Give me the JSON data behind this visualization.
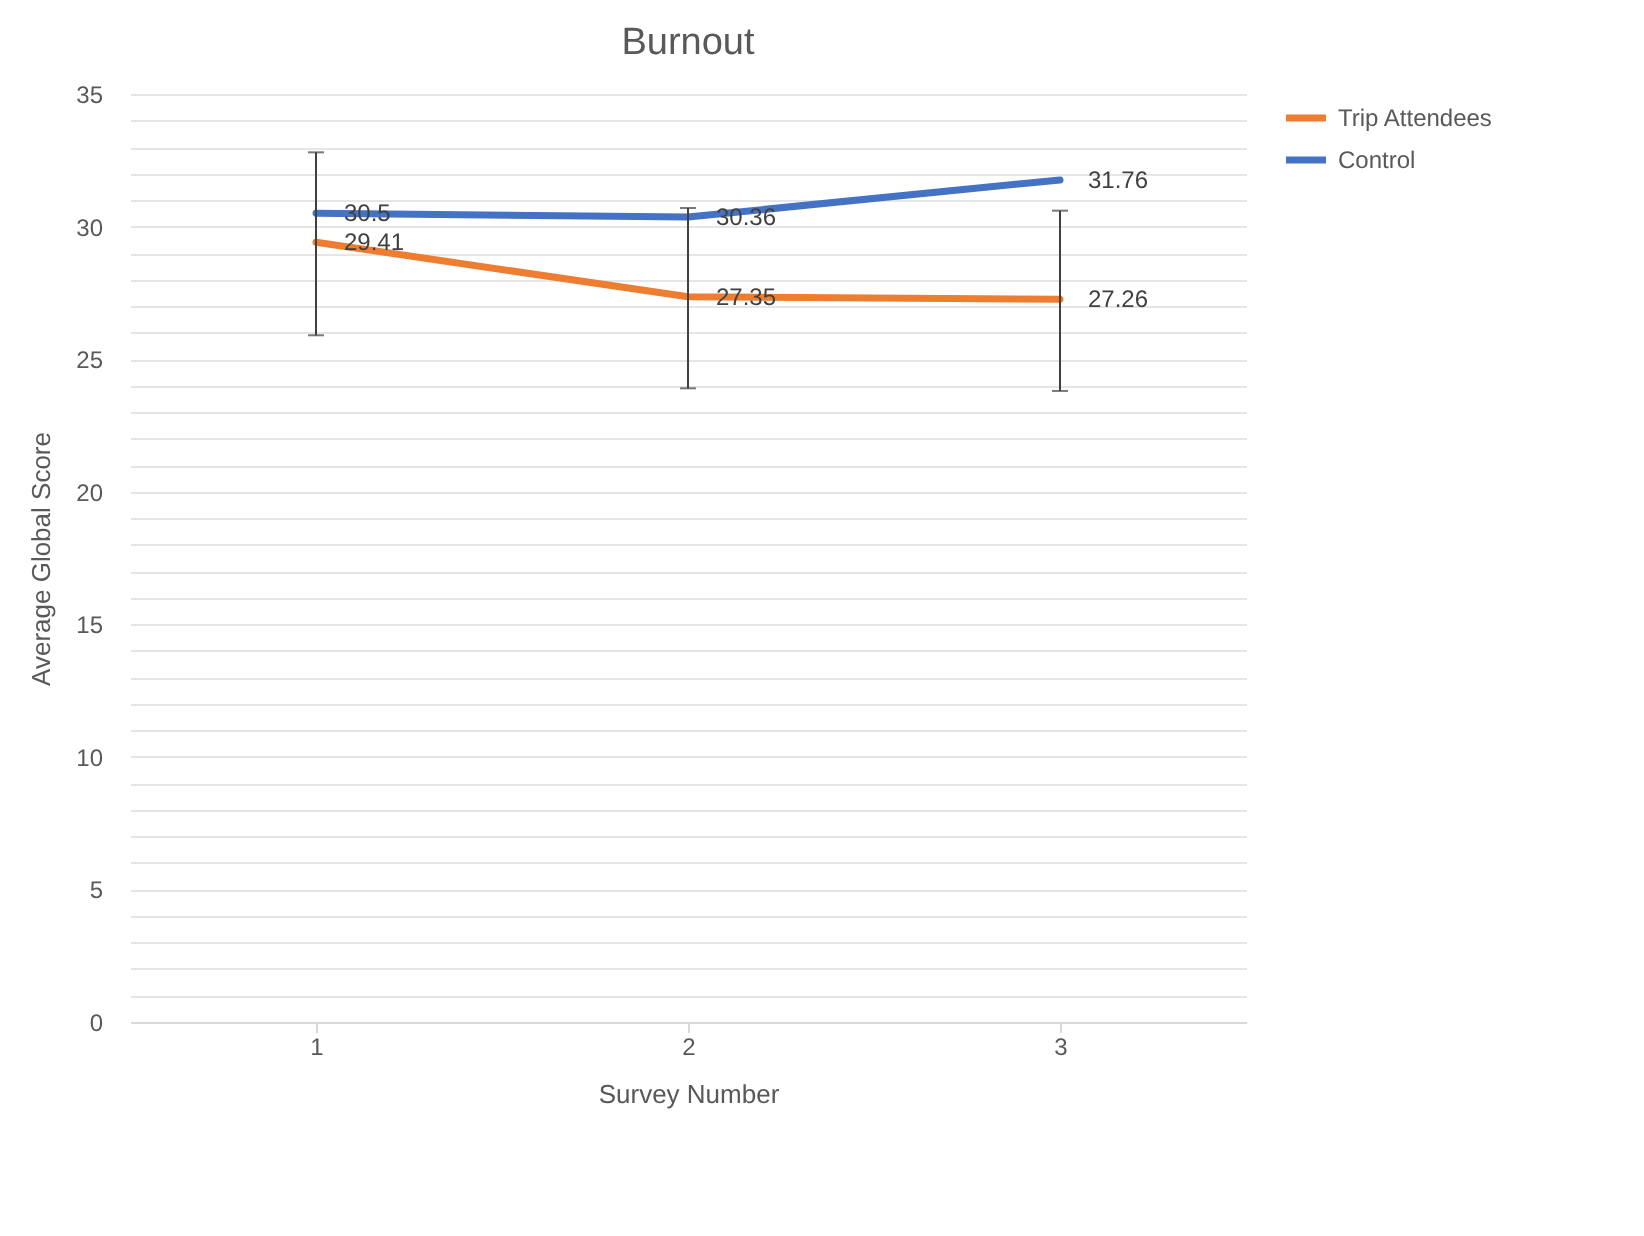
{
  "chart_data": {
    "type": "line",
    "title": "Burnout",
    "xlabel": "Survey Number",
    "ylabel": "Average Global Score",
    "categories": [
      "1",
      "2",
      "3"
    ],
    "series": [
      {
        "name": "Trip Attendees",
        "color": "#ed7d31",
        "values": [
          29.41,
          27.35,
          27.26
        ],
        "errors": [
          [
            25.9,
            32.8
          ],
          [
            23.9,
            30.7
          ],
          [
            23.8,
            30.6
          ]
        ]
      },
      {
        "name": "Control",
        "color": "#4472c4",
        "values": [
          30.5,
          30.36,
          31.76
        ]
      }
    ],
    "ylim": [
      0,
      35
    ],
    "yticks": [
      0,
      {
        "value": 1,
        "label": null
      },
      {
        "value": 2,
        "label": null
      },
      {
        "value": 3,
        "label": null
      },
      {
        "value": 4,
        "label": null
      },
      5,
      {
        "value": 6,
        "label": null
      },
      {
        "value": 7,
        "label": null
      },
      {
        "value": 8,
        "label": null
      },
      {
        "value": 9,
        "label": null
      },
      10,
      {
        "value": 11,
        "label": null
      },
      {
        "value": 12,
        "label": null
      },
      {
        "value": 13,
        "label": null
      },
      {
        "value": 14,
        "label": null
      },
      15,
      {
        "value": 16,
        "label": null
      },
      {
        "value": 17,
        "label": null
      },
      {
        "value": 18,
        "label": null
      },
      {
        "value": 19,
        "label": null
      },
      20,
      {
        "value": 21,
        "label": null
      },
      {
        "value": 22,
        "label": null
      },
      {
        "value": 23,
        "label": null
      },
      {
        "value": 24,
        "label": null
      },
      25,
      {
        "value": 26,
        "label": null
      },
      {
        "value": 27,
        "label": null
      },
      {
        "value": 28,
        "label": null
      },
      {
        "value": 29,
        "label": null
      },
      30,
      {
        "value": 31,
        "label": null
      },
      {
        "value": 32,
        "label": null
      },
      {
        "value": 33,
        "label": null
      },
      {
        "value": 34,
        "label": null
      },
      35
    ],
    "grid": "y",
    "legend": "right",
    "data_labels": true,
    "marker": "none",
    "line_style": "solid"
  }
}
